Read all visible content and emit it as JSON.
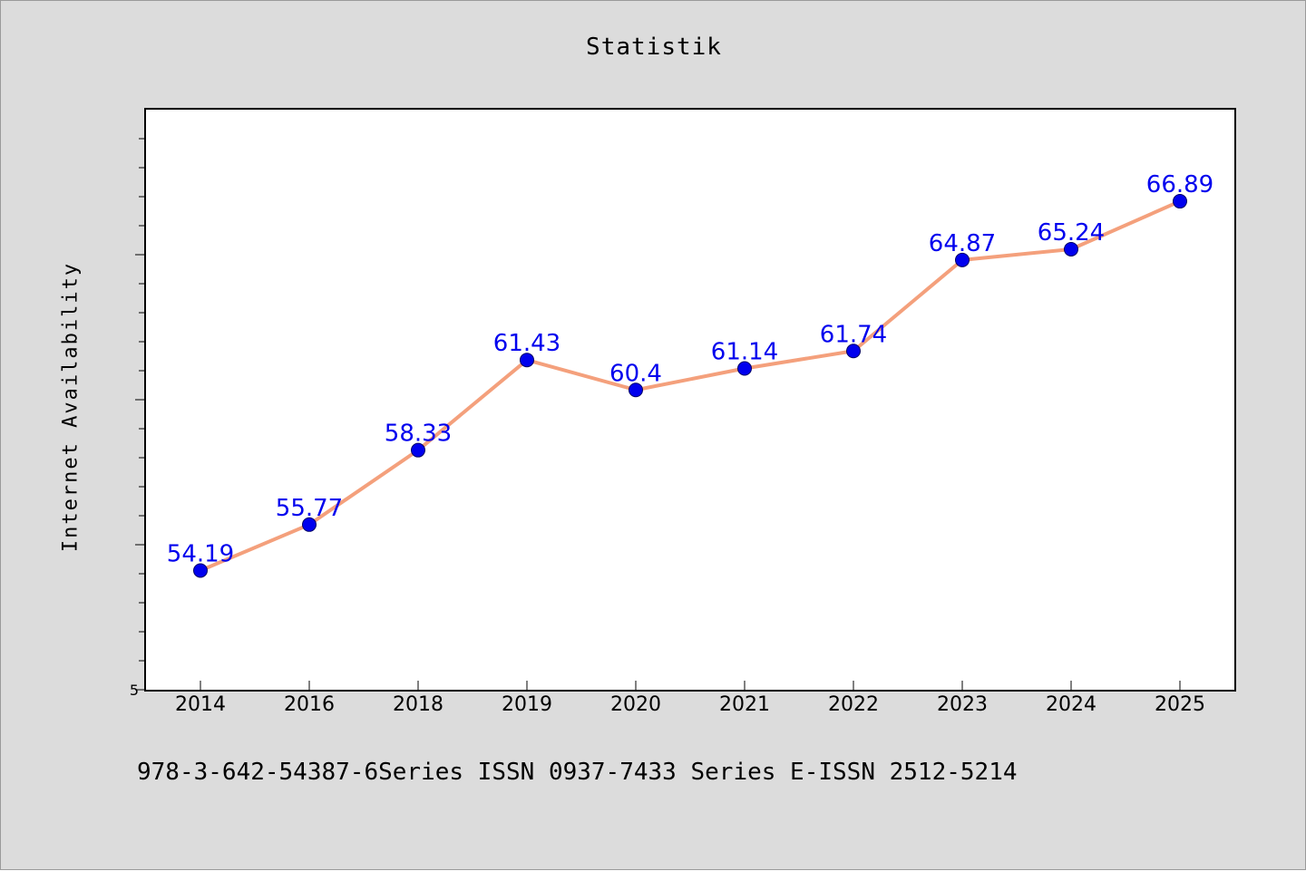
{
  "figure": {
    "background": "#dcdcdc",
    "footer": "978-3-642-54387-6Series ISSN 0937-7433 Series E-ISSN 2512-5214"
  },
  "chart_data": {
    "type": "line",
    "title": "Statistik",
    "xlabel": "",
    "ylabel": "Internet Availability",
    "categories": [
      "2014",
      "2016",
      "2018",
      "2019",
      "2020",
      "2021",
      "2022",
      "2023",
      "2024",
      "2025"
    ],
    "series": [
      {
        "values": [
          54.19,
          55.77,
          58.33,
          61.43,
          60.4,
          61.14,
          61.74,
          64.87,
          65.24,
          66.89
        ],
        "line_color": "#f4a07c",
        "marker_color": "#0000ee",
        "label_color": "#0000ee"
      }
    ],
    "y_tick_labels": [
      "5"
    ],
    "y_axis_bottom_label": "5",
    "ylim": [
      50.09,
      70.04
    ],
    "grid": false,
    "legend": "none"
  }
}
